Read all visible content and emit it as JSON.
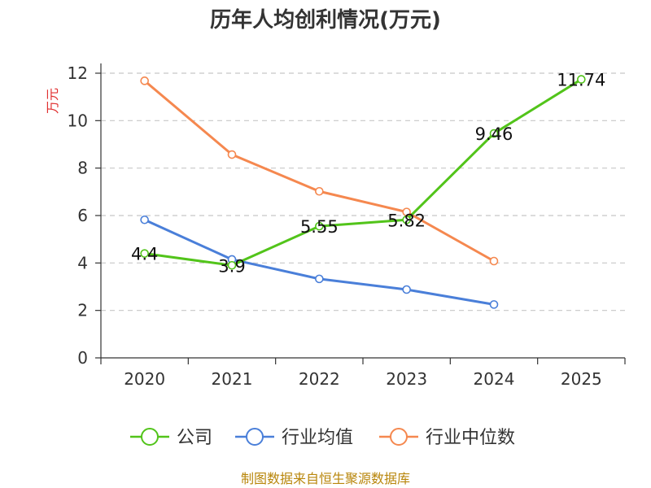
{
  "chart_data": {
    "type": "line",
    "title": "历年人均创利情况(万元)",
    "xlabel": "",
    "ylabel": "万元",
    "categories": [
      "2020",
      "2021",
      "2022",
      "2023",
      "2024",
      "2025"
    ],
    "ylim": [
      0,
      12
    ],
    "yticks": [
      "0",
      "2",
      "4",
      "6",
      "8",
      "10",
      "12"
    ],
    "grid": true,
    "legend_position": "bottom",
    "series": [
      {
        "name": "公司",
        "color": "#52c41a",
        "values": [
          4.4,
          3.9,
          5.55,
          5.82,
          9.46,
          11.74
        ],
        "labels": [
          "4.4",
          "3.9",
          "5.55",
          "5.82",
          "9.46",
          "11.74"
        ]
      },
      {
        "name": "行业均值",
        "color": "#4a7fd9",
        "values": [
          5.82,
          4.15,
          3.33,
          2.88,
          2.25,
          null
        ]
      },
      {
        "name": "行业中位数",
        "color": "#f5884f",
        "values": [
          11.68,
          8.57,
          7.02,
          6.15,
          4.08,
          null
        ]
      }
    ]
  },
  "source_note": "制图数据来自恒生聚源数据库"
}
